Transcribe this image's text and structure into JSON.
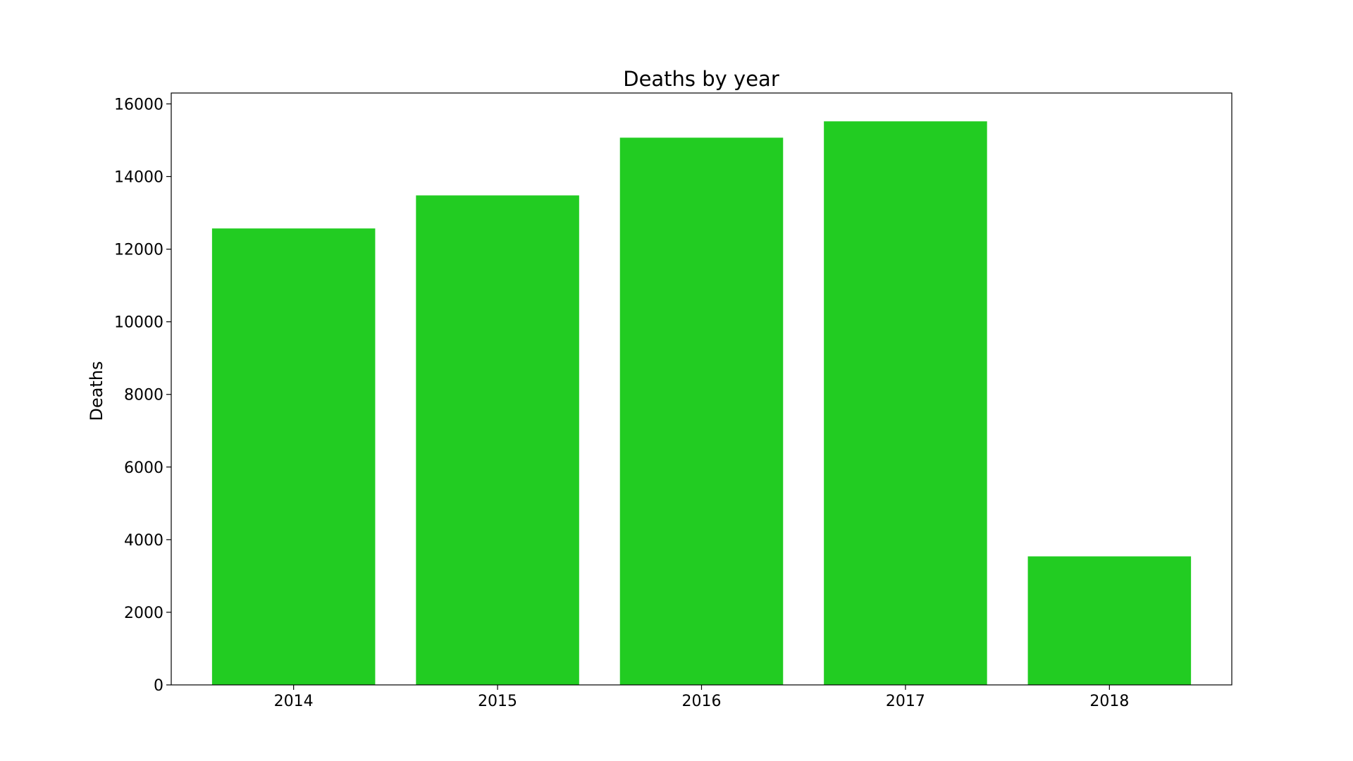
{
  "chart_data": {
    "type": "bar",
    "title": "Deaths by year",
    "xlabel": "",
    "ylabel": "Deaths",
    "categories": [
      "2014",
      "2015",
      "2016",
      "2017",
      "2018"
    ],
    "values": [
      12570,
      13480,
      15070,
      15520,
      3540
    ],
    "ylim": [
      0,
      16300
    ],
    "yticks": [
      0,
      2000,
      4000,
      6000,
      8000,
      10000,
      12000,
      14000,
      16000
    ],
    "bar_color": "#22cc22",
    "grid": false,
    "legend": false
  }
}
